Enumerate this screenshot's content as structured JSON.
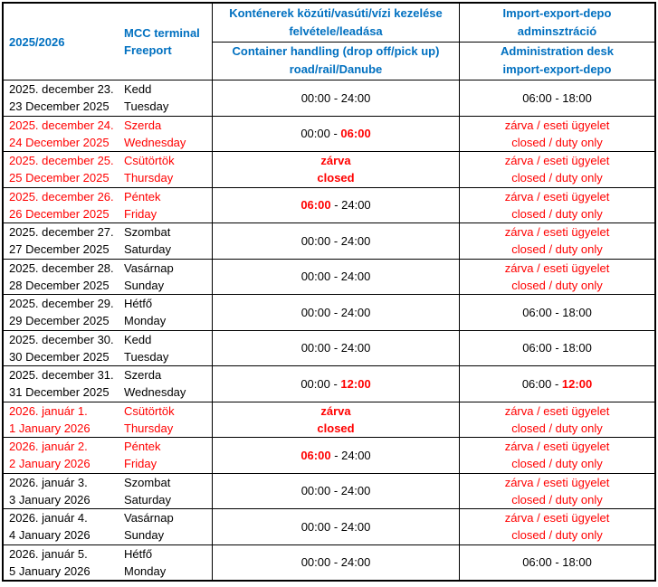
{
  "colors": {
    "header_blue": "#0070C0",
    "highlight_red": "#FF0000",
    "text_black": "#000000",
    "border_black": "#000000"
  },
  "header": {
    "season": "2025/2026",
    "terminal": {
      "line1": "MCC terminal",
      "line2": "Freeport"
    },
    "handling": {
      "hu1": "Konténerek közúti/vasúti/vízi kezelése",
      "hu2": "felvétele/leadása",
      "en1": "Container handling (drop off/pick up)",
      "en2": "road/rail/Danube"
    },
    "admin": {
      "hu1": "Import-export-depo",
      "hu2": "adminsztráció",
      "en1": "Administration desk",
      "en2": "import-export-depo"
    }
  },
  "rows": [
    {
      "date_hu": "2025. december 23.",
      "date_en": "23 December 2025",
      "day_hu": "Kedd",
      "day_en": "Tuesday",
      "date_color": "#000000",
      "handling": [
        {
          "pre": "00:00 - 24:00"
        }
      ],
      "admin": [
        {
          "pre": "06:00 - 18:00"
        }
      ]
    },
    {
      "date_hu": "2025. december 24.",
      "date_en": "24 December 2025",
      "day_hu": "Szerda",
      "day_en": "Wednesday",
      "date_color": "#FF0000",
      "handling": [
        {
          "pre": "00:00 - ",
          "hl": "06:00"
        }
      ],
      "admin": [
        {
          "red": "zárva / eseti ügyelet"
        },
        {
          "red": "closed / duty only"
        }
      ]
    },
    {
      "date_hu": "2025. december 25.",
      "date_en": "25 December 2025",
      "day_hu": "Csütörtök",
      "day_en": "Thursday",
      "date_color": "#FF0000",
      "handling": [
        {
          "hl": "zárva"
        },
        {
          "hl": "closed"
        }
      ],
      "admin": [
        {
          "red": "zárva / eseti ügyelet"
        },
        {
          "red": "closed / duty only"
        }
      ]
    },
    {
      "date_hu": "2025. december 26.",
      "date_en": "26 December 2025",
      "day_hu": "Péntek",
      "day_en": "Friday",
      "date_color": "#FF0000",
      "handling": [
        {
          "hl": "06:00",
          "post": " - 24:00"
        }
      ],
      "admin": [
        {
          "red": "zárva / eseti ügyelet"
        },
        {
          "red": "closed / duty only"
        }
      ]
    },
    {
      "date_hu": "2025. december 27.",
      "date_en": "27 December 2025",
      "day_hu": "Szombat",
      "day_en": "Saturday",
      "date_color": "#000000",
      "handling": [
        {
          "pre": "00:00 - 24:00"
        }
      ],
      "admin": [
        {
          "red": "zárva / eseti ügyelet"
        },
        {
          "red": "closed / duty only"
        }
      ]
    },
    {
      "date_hu": "2025. december 28.",
      "date_en": "28 December 2025",
      "day_hu": "Vasárnap",
      "day_en": "Sunday",
      "date_color": "#000000",
      "handling": [
        {
          "pre": "00:00 - 24:00"
        }
      ],
      "admin": [
        {
          "red": "zárva / eseti ügyelet"
        },
        {
          "red": "closed / duty only"
        }
      ]
    },
    {
      "date_hu": "2025. december 29.",
      "date_en": "29 December 2025",
      "day_hu": "Hétfő",
      "day_en": "Monday",
      "date_color": "#000000",
      "handling": [
        {
          "pre": "00:00 - 24:00"
        }
      ],
      "admin": [
        {
          "pre": "06:00 - 18:00"
        }
      ]
    },
    {
      "date_hu": "2025. december 30.",
      "date_en": "30 December 2025",
      "day_hu": "Kedd",
      "day_en": "Tuesday",
      "date_color": "#000000",
      "handling": [
        {
          "pre": "00:00 - 24:00"
        }
      ],
      "admin": [
        {
          "pre": "06:00 - 18:00"
        }
      ]
    },
    {
      "date_hu": "2025. december 31.",
      "date_en": "31 December 2025",
      "day_hu": "Szerda",
      "day_en": "Wednesday",
      "date_color": "#000000",
      "handling": [
        {
          "pre": "00:00 - ",
          "hl": "12:00"
        }
      ],
      "admin": [
        {
          "pre": "06:00 - ",
          "hl": "12:00"
        }
      ]
    },
    {
      "date_hu": "2026. január 1.",
      "date_en": "1 January 2026",
      "day_hu": "Csütörtök",
      "day_en": "Thursday",
      "date_color": "#FF0000",
      "handling": [
        {
          "hl": "zárva"
        },
        {
          "hl": "closed"
        }
      ],
      "admin": [
        {
          "red": "zárva / eseti ügyelet"
        },
        {
          "red": "closed / duty only"
        }
      ]
    },
    {
      "date_hu": "2026. január 2.",
      "date_en": "2 January 2026",
      "day_hu": "Péntek",
      "day_en": "Friday",
      "date_color": "#FF0000",
      "handling": [
        {
          "hl": "06:00",
          "post": " - 24:00"
        }
      ],
      "admin": [
        {
          "red": "zárva / eseti ügyelet"
        },
        {
          "red": "closed / duty only"
        }
      ]
    },
    {
      "date_hu": "2026. január 3.",
      "date_en": "3 January 2026",
      "day_hu": "Szombat",
      "day_en": "Saturday",
      "date_color": "#000000",
      "handling": [
        {
          "pre": "00:00 - 24:00"
        }
      ],
      "admin": [
        {
          "red": "zárva / eseti ügyelet"
        },
        {
          "red": "closed / duty only"
        }
      ]
    },
    {
      "date_hu": "2026. január 4.",
      "date_en": "4 January 2026",
      "day_hu": "Vasárnap",
      "day_en": "Sunday",
      "date_color": "#000000",
      "handling": [
        {
          "pre": "00:00 - 24:00"
        }
      ],
      "admin": [
        {
          "red": "zárva / eseti ügyelet"
        },
        {
          "red": "closed / duty only"
        }
      ]
    },
    {
      "date_hu": "2026. január 5.",
      "date_en": "5 January 2026",
      "day_hu": "Hétfő",
      "day_en": "Monday",
      "date_color": "#000000",
      "handling": [
        {
          "pre": "00:00 - 24:00"
        }
      ],
      "admin": [
        {
          "pre": "06:00 - 18:00"
        }
      ]
    }
  ]
}
